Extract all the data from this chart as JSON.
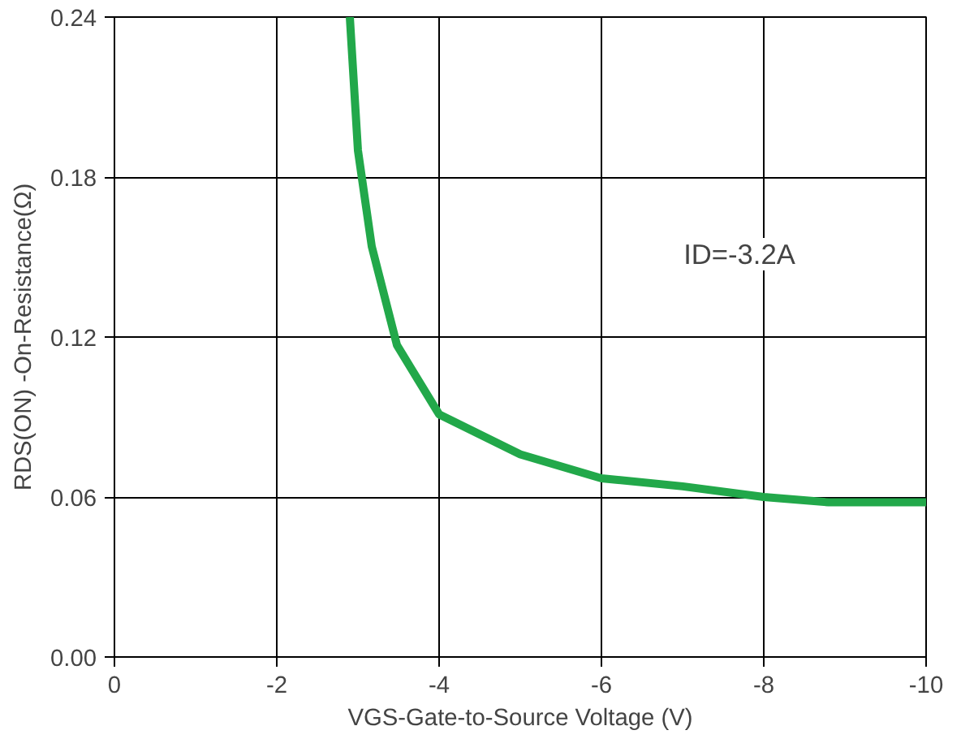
{
  "chart_data": {
    "type": "line",
    "xlabel": "VGS-Gate-to-Source Voltage (V)",
    "ylabel": "RDS(ON) -On-Resistance(Ω)",
    "annotations": [
      "ID=-3.2A"
    ],
    "x": [
      -2.9,
      -3.0,
      -3.17,
      -3.48,
      -4.0,
      -5.0,
      -6.0,
      -7.0,
      -8.0,
      -8.8,
      -10.0
    ],
    "series": [
      {
        "color": "#22a84a",
        "values": [
          0.24,
          0.19,
          0.154,
          0.117,
          0.091,
          0.076,
          0.067,
          0.064,
          0.06,
          0.058,
          0.058
        ]
      }
    ],
    "xlim": [
      0,
      -10
    ],
    "ylim": [
      0,
      0.24
    ],
    "xticks": [
      0,
      -2,
      -4,
      -6,
      -8,
      -10
    ],
    "yticks": [
      {
        "value": 0,
        "label": "0.00"
      },
      {
        "value": 0.06,
        "label": "0.06"
      },
      {
        "value": 0.12,
        "label": "0.12"
      },
      {
        "value": 0.18,
        "label": "0.18"
      },
      {
        "value": 0.24,
        "label": "0.24"
      }
    ],
    "grid": true,
    "marker": "none",
    "line_style": "solid"
  }
}
